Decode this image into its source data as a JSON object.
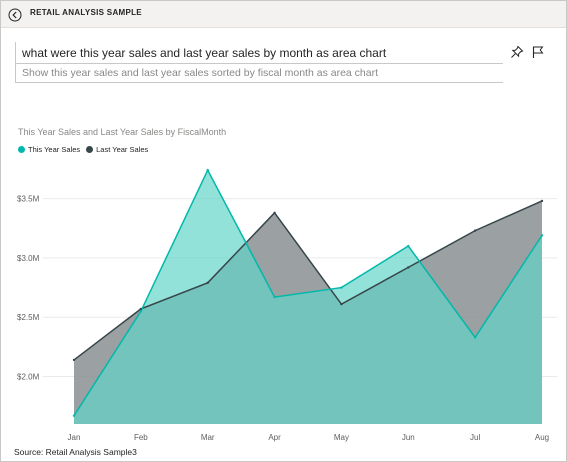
{
  "header": {
    "title": "RETAIL ANALYSIS SAMPLE",
    "back_icon": "back-arrow-icon"
  },
  "qa": {
    "question": "what were this year sales and last year sales by month as area chart",
    "restatement": "Show this year sales and last year sales sorted by fiscal month as area chart"
  },
  "actions": {
    "pin_icon": "pin-icon",
    "flag_icon": "flag-icon"
  },
  "chart_data": {
    "type": "area",
    "title": "This Year Sales and Last Year Sales by FiscalMonth",
    "categories": [
      "Jan",
      "Feb",
      "Mar",
      "Apr",
      "May",
      "Jun",
      "Jul",
      "Aug"
    ],
    "series": [
      {
        "name": "This Year Sales",
        "color": "#01b8aa",
        "fill": "#5fd4c8",
        "values": [
          1.67,
          2.55,
          3.74,
          2.67,
          2.75,
          3.1,
          2.33,
          3.19
        ]
      },
      {
        "name": "Last Year Sales",
        "color": "#374649",
        "fill": "#8a9192",
        "values": [
          2.14,
          2.57,
          2.79,
          3.38,
          2.61,
          2.92,
          3.23,
          3.48
        ]
      }
    ],
    "y_ticks": [
      "$2.0M",
      "$2.5M",
      "$3.0M",
      "$3.5M"
    ],
    "y_tick_values": [
      2.0,
      2.5,
      3.0,
      3.5
    ],
    "ylim": [
      1.6,
      3.8
    ],
    "grid": true,
    "legend_position": "top-left"
  },
  "footer": {
    "source": "Source: Retail Analysis Sample3"
  }
}
